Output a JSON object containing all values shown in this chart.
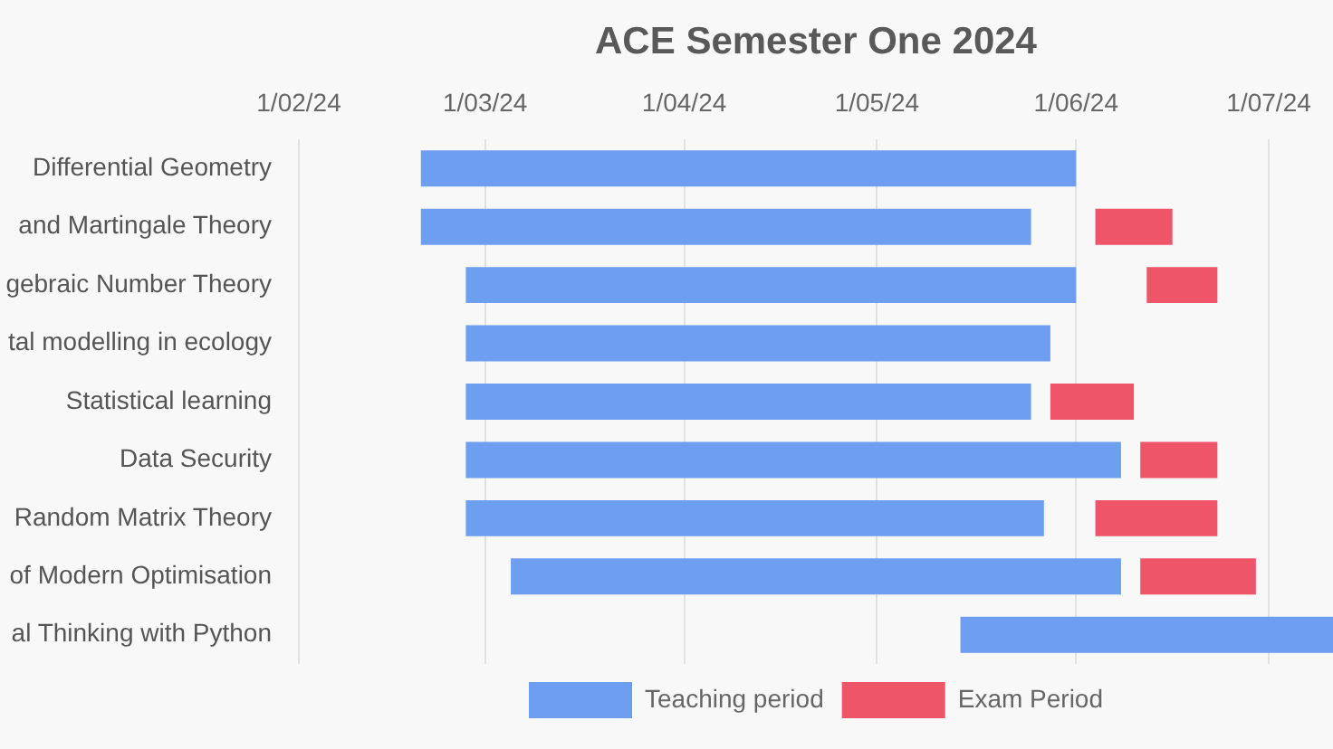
{
  "chart_data": {
    "type": "bar",
    "orientation": "horizontal",
    "title": "ACE Semester One 2024",
    "categories": [
      "Differential Geometry",
      "and Martingale Theory",
      "gebraic Number Theory",
      "tal modelling in ecology",
      "Statistical learning",
      "Data Security",
      "Random Matrix Theory",
      "of Modern Optimisation",
      "al Thinking with Python"
    ],
    "series": [
      {
        "name": "Teaching period",
        "color": "#6d9eef",
        "base": [
          19773,
          19773,
          19780,
          19780,
          19780,
          19780,
          19780,
          19787,
          19857
        ],
        "values": [
          102,
          95,
          95,
          91,
          88,
          102,
          90,
          95,
          58
        ]
      },
      {
        "name": "Exam Period",
        "color": "#ef5568",
        "base": [
          null,
          19878,
          19886,
          null,
          19871,
          19885,
          19878,
          19885,
          null
        ],
        "values": [
          null,
          12,
          11,
          null,
          13,
          12,
          19,
          18,
          null
        ]
      }
    ],
    "xlim": [
      "2024-02-01",
      "2024-07-11"
    ],
    "xticks": [
      {
        "value": "2024-02-01",
        "label": "1/02/24"
      },
      {
        "value": "2024-03-01",
        "label": "1/03/24"
      },
      {
        "value": "2024-04-01",
        "label": "1/04/24"
      },
      {
        "value": "2024-05-01",
        "label": "1/05/24"
      },
      {
        "value": "2024-06-01",
        "label": "1/06/24"
      },
      {
        "value": "2024-07-01",
        "label": "1/07/24"
      }
    ],
    "grid": "x",
    "legend": "bottom"
  }
}
